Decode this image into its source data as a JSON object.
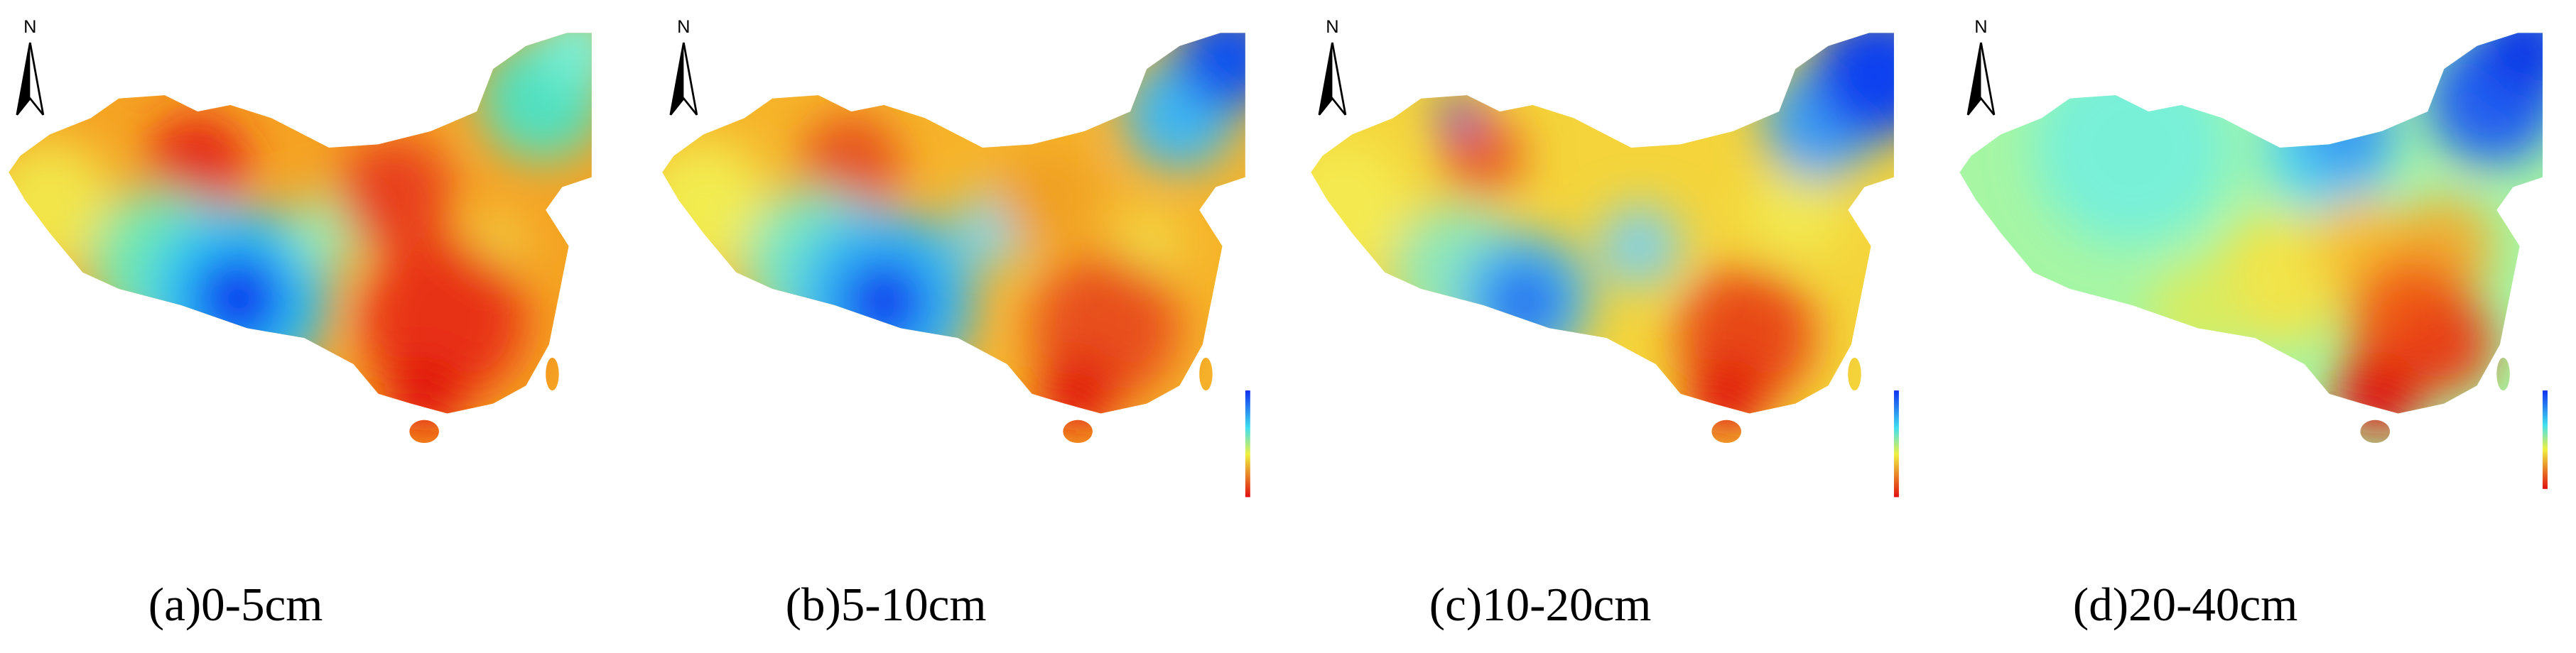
{
  "panels": [
    {
      "north": "N",
      "caption": "(a)0-5cm"
    },
    {
      "north": "N",
      "caption": "(b)5-10cm"
    },
    {
      "north": "N",
      "caption": "(c)10-20cm"
    },
    {
      "north": "N",
      "caption": "(d)20-40cm"
    }
  ]
}
